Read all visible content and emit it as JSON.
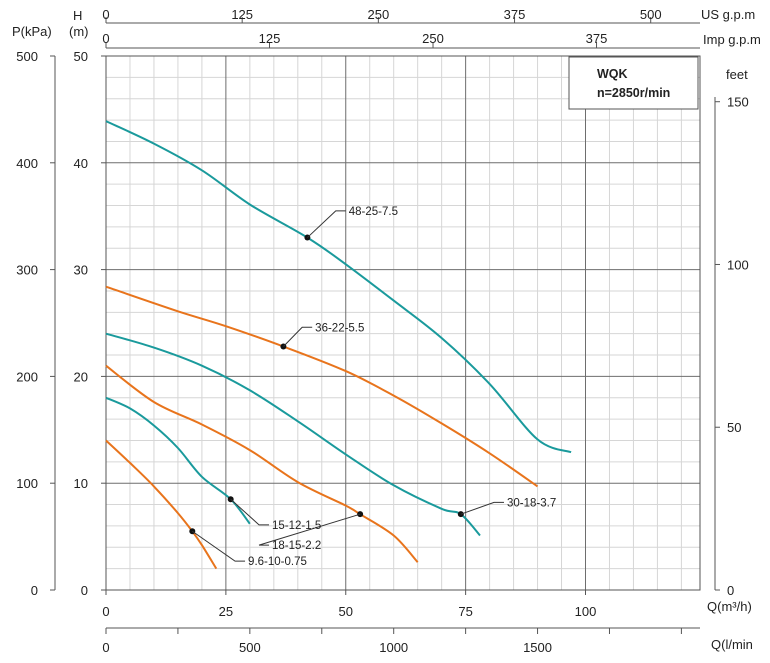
{
  "colors": {
    "teal": "#1a9a9c",
    "orange": "#e8741c",
    "minor_grid": "#d6d6d6",
    "major_grid": "#6e6e6e",
    "axis": "#555555"
  },
  "chart_data": {
    "type": "line",
    "title_box": {
      "line1": "WQK",
      "line2": "n=2850r/min"
    },
    "units": {
      "pressure": "P(kPa)",
      "head_h": "H",
      "head_m": "(m)",
      "feet": "feet",
      "flow_m3h": "Q(m³/h)",
      "flow_lmin": "Q(l/min",
      "us_gpm": "US g.p.m",
      "imp_gpm": "Imp g.p.m"
    },
    "axes": {
      "x_m3h": {
        "range": [
          0,
          125
        ],
        "ticks": [
          "0",
          "25",
          "50",
          "75",
          "100"
        ],
        "tick_values": [
          0,
          25,
          50,
          75,
          100
        ]
      },
      "y_head_m": {
        "range": [
          0,
          50
        ],
        "ticks": [
          "0",
          "10",
          "20",
          "30",
          "40",
          "50"
        ],
        "tick_values": [
          0,
          10,
          20,
          30,
          40,
          50
        ]
      },
      "y_kpa": {
        "ticks": [
          "0",
          "100",
          "200",
          "300",
          "400",
          "500"
        ],
        "tick_values": [
          0,
          10,
          20,
          30,
          40,
          50
        ]
      },
      "y_feet": {
        "ticks": [
          "0",
          "50",
          "100",
          "150"
        ],
        "tick_values": [
          0,
          15.24,
          30.48,
          45.72
        ]
      },
      "x_lmin": {
        "ticks": [
          "0",
          "500",
          "1000",
          "1500"
        ],
        "tick_values": [
          0,
          30,
          60,
          90
        ]
      },
      "x_us_gpm": {
        "ticks": [
          "0",
          "125",
          "250",
          "375",
          "500"
        ],
        "tick_values": [
          0,
          28.4,
          56.8,
          85.2,
          113.6
        ]
      },
      "x_imp_gpm": {
        "ticks": [
          "0",
          "125",
          "250",
          "375"
        ],
        "tick_values": [
          0,
          34.1,
          68.2,
          102.3
        ]
      }
    },
    "series": [
      {
        "name": "48-25-7.5",
        "color": "teal",
        "points": [
          [
            0,
            43.9
          ],
          [
            10,
            41.8
          ],
          [
            20,
            39.3
          ],
          [
            30,
            36.1
          ],
          [
            42,
            33
          ],
          [
            50,
            30.5
          ],
          [
            60,
            27.1
          ],
          [
            70,
            23.6
          ],
          [
            80,
            19.3
          ],
          [
            90,
            14.1
          ],
          [
            97,
            12.9
          ]
        ],
        "marker": [
          42,
          33
        ],
        "label_at": [
          50,
          35.5
        ]
      },
      {
        "name": "36-22-5.5",
        "color": "orange",
        "points": [
          [
            0,
            28.4
          ],
          [
            15,
            26.1
          ],
          [
            25,
            24.7
          ],
          [
            37,
            22.8
          ],
          [
            50,
            20.5
          ],
          [
            60,
            18.2
          ],
          [
            70,
            15.6
          ],
          [
            80,
            12.8
          ],
          [
            90,
            9.7
          ]
        ],
        "marker": [
          37,
          22.8
        ],
        "label_at": [
          43,
          24.6
        ]
      },
      {
        "name": "30-18-3.7",
        "color": "teal",
        "points": [
          [
            0,
            24
          ],
          [
            10,
            22.7
          ],
          [
            20,
            21
          ],
          [
            30,
            18.7
          ],
          [
            40,
            15.8
          ],
          [
            50,
            12.7
          ],
          [
            60,
            9.8
          ],
          [
            70,
            7.6
          ],
          [
            74,
            7.1
          ],
          [
            78,
            5.1
          ]
        ],
        "marker": [
          74,
          7.1
        ],
        "label_at": [
          83,
          8.2
        ]
      },
      {
        "name": "18-15-2.2",
        "color": "orange",
        "points": [
          [
            0,
            21
          ],
          [
            10,
            17.6
          ],
          [
            20,
            15.5
          ],
          [
            30,
            13.1
          ],
          [
            40,
            10.1
          ],
          [
            50,
            7.9
          ],
          [
            53,
            7.1
          ],
          [
            60,
            5.1
          ],
          [
            65,
            2.6
          ]
        ],
        "marker": [
          53,
          7.1
        ],
        "label_at": [
          34,
          4.2
        ]
      },
      {
        "name": "15-12-1.5",
        "color": "teal",
        "points": [
          [
            0,
            18
          ],
          [
            5,
            17
          ],
          [
            10,
            15.4
          ],
          [
            15,
            13.3
          ],
          [
            20,
            10.6
          ],
          [
            26,
            8.5
          ],
          [
            30,
            6.2
          ]
        ],
        "marker": [
          26,
          8.5
        ],
        "label_at": [
          34,
          6.1
        ]
      },
      {
        "name": "9.6-10-0.75",
        "color": "orange",
        "points": [
          [
            0,
            14
          ],
          [
            5,
            11.9
          ],
          [
            10,
            9.7
          ],
          [
            15,
            7.2
          ],
          [
            18,
            5.5
          ],
          [
            20,
            4.2
          ],
          [
            23,
            2
          ]
        ],
        "marker": [
          18,
          5.5
        ],
        "label_at": [
          29,
          2.7
        ]
      }
    ]
  }
}
